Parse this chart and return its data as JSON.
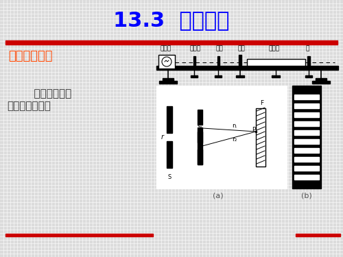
{
  "title": "13.3  光的干涉",
  "title_color": "#0000FF",
  "title_fontsize": 22,
  "subtitle": "一、双缝干涉",
  "subtitle_color": "#FF4500",
  "subtitle_fontsize": 13,
  "bg_color": "#DCDCDC",
  "red_bar_color": "#CC0000",
  "text1": "    双缝干涉实验",
  "text2": "证明光是一种波",
  "text_color": "#333333",
  "text_fontsize": 11,
  "apparatus_labels": [
    "白炽灯",
    "滤光片",
    "单缝",
    "双缝",
    "遮光筒",
    "屏"
  ],
  "caption_a": "(a)",
  "caption_b": "(b)"
}
